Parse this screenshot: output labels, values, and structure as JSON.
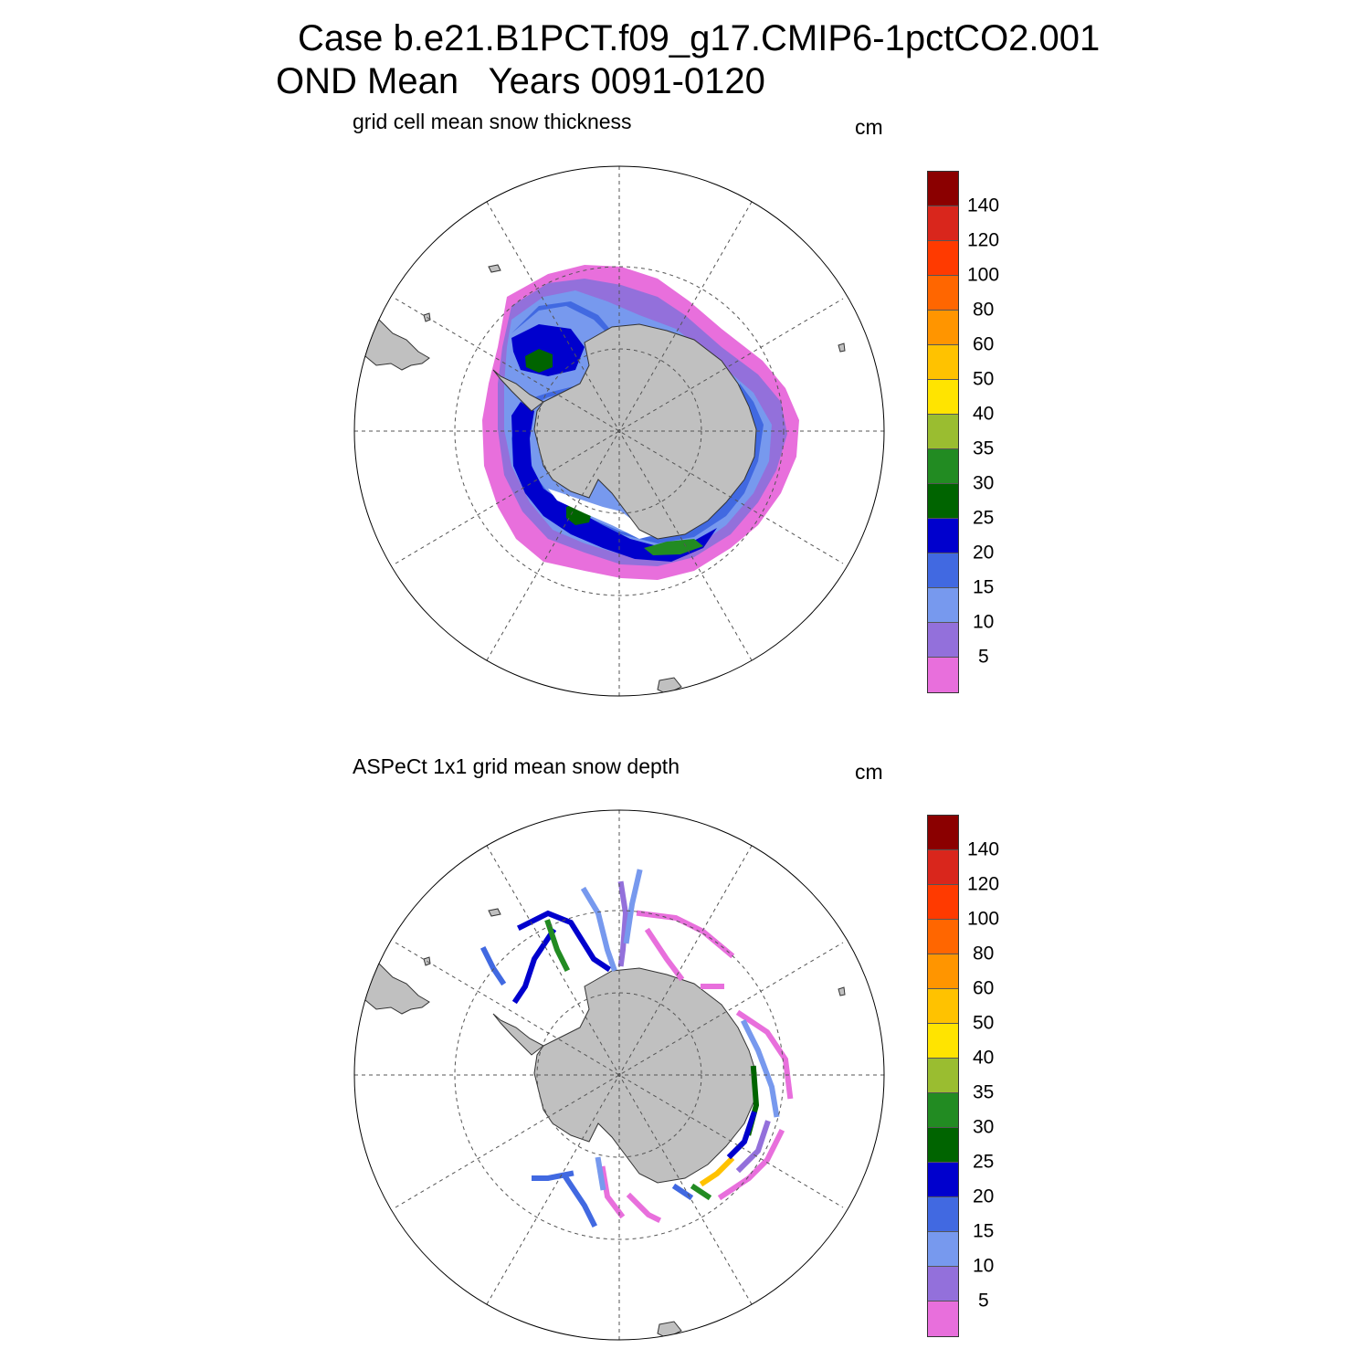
{
  "title": {
    "line1": "Case b.e21.B1PCT.f09_g17.CMIP6-1pctCO2.001",
    "line2": "OND Mean   Years 0091-0120"
  },
  "panels": [
    {
      "subtitle": "grid cell mean snow thickness",
      "unit": "cm"
    },
    {
      "subtitle": "ASPeCt 1x1 grid mean snow depth",
      "unit": "cm"
    }
  ],
  "colorbar": {
    "colors_top_to_bottom": [
      "#8b0000",
      "#d9261c",
      "#ff3a00",
      "#ff6600",
      "#ff9500",
      "#ffc200",
      "#ffe400",
      "#9abd30",
      "#228b22",
      "#006400",
      "#0000cd",
      "#4169e1",
      "#7799ee",
      "#9370db",
      "#e86fdc"
    ],
    "labels_top_to_bottom": [
      "140",
      "120",
      "100",
      "80",
      "60",
      "50",
      "40",
      "35",
      "30",
      "25",
      "20",
      "15",
      "10",
      "5"
    ]
  },
  "map_colors": {
    "land": "#c0c0c0",
    "graticule": "#555555"
  }
}
